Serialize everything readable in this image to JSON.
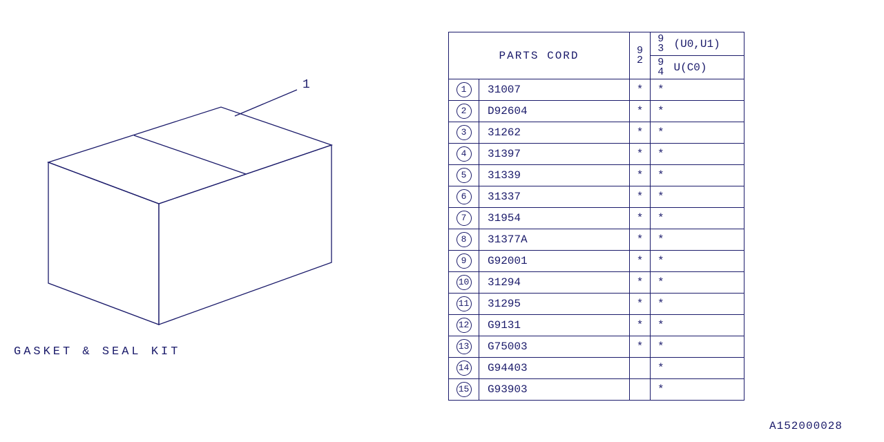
{
  "diagram": {
    "kit_label": "GASKET & SEAL KIT",
    "callout": "1",
    "stroke": "#1a1a6a",
    "stroke_width": 1.3
  },
  "table": {
    "header": {
      "parts_cord": "PARTS CORD",
      "col92": "9\n2",
      "col93": "9\n3",
      "note_top": "(U0,U1)",
      "col94": "9\n4",
      "note_bot": "U(C0)"
    },
    "rows": [
      {
        "n": "1",
        "code": "31007",
        "c92": "*",
        "c93": "*"
      },
      {
        "n": "2",
        "code": "D92604",
        "c92": "*",
        "c93": "*"
      },
      {
        "n": "3",
        "code": "31262",
        "c92": "*",
        "c93": "*"
      },
      {
        "n": "4",
        "code": "31397",
        "c92": "*",
        "c93": "*"
      },
      {
        "n": "5",
        "code": "31339",
        "c92": "*",
        "c93": "*"
      },
      {
        "n": "6",
        "code": "31337",
        "c92": "*",
        "c93": "*"
      },
      {
        "n": "7",
        "code": "31954",
        "c92": "*",
        "c93": "*"
      },
      {
        "n": "8",
        "code": "31377A",
        "c92": "*",
        "c93": "*"
      },
      {
        "n": "9",
        "code": "G92001",
        "c92": "*",
        "c93": "*"
      },
      {
        "n": "10",
        "code": "31294",
        "c92": "*",
        "c93": "*"
      },
      {
        "n": "11",
        "code": "31295",
        "c92": "*",
        "c93": "*"
      },
      {
        "n": "12",
        "code": "G9131",
        "c92": "*",
        "c93": "*"
      },
      {
        "n": "13",
        "code": "G75003",
        "c92": "*",
        "c93": "*"
      },
      {
        "n": "14",
        "code": "G94403",
        "c92": "",
        "c93": "*"
      },
      {
        "n": "15",
        "code": "G93903",
        "c92": "",
        "c93": "*"
      }
    ]
  },
  "footer": {
    "code": "A152000028"
  },
  "style": {
    "text_color": "#1a1a6a",
    "background": "#ffffff",
    "font": "Courier New"
  }
}
